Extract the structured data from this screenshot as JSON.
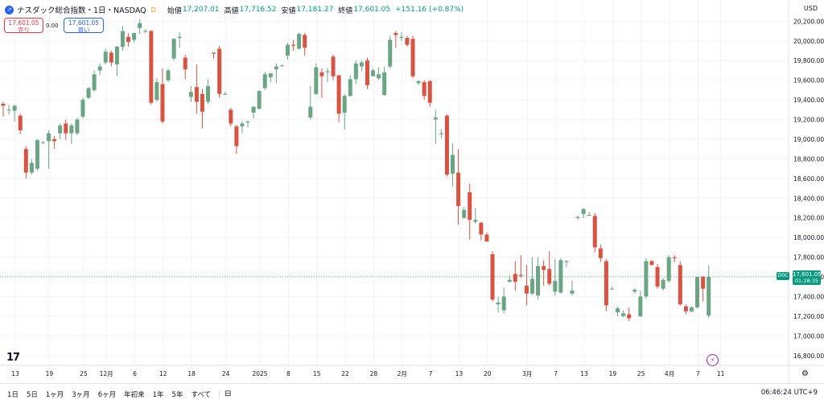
{
  "header": {
    "logo_glyph": "↗",
    "title": "ナスダック総合指数・1日・NASDAQ",
    "delay_badge": "D",
    "open_label": "始値",
    "open_value": "17,207.01",
    "high_label": "高値",
    "high_value": "17,716.52",
    "low_label": "安値",
    "low_value": "17,181.27",
    "close_label": "終値",
    "close_value": "17,601.05",
    "change": "+151.16 (+0.87%)"
  },
  "trade": {
    "sell_price": "17,601.05",
    "sell_label": "売り",
    "spread": "0.00",
    "buy_price": "17,601.05",
    "buy_label": "買い"
  },
  "currency": "USD",
  "price_tag": {
    "value": "17,601.05",
    "countdown": "01:28:35",
    "flag": "D0C"
  },
  "bottom": {
    "timeframes": [
      "1日",
      "5日",
      "1ヶ月",
      "3ヶ月",
      "6ヶ月",
      "年初来",
      "1年",
      "5年",
      "すべて"
    ],
    "clock": "06:46:24 UTC+9"
  },
  "colors": {
    "up": "#6ba583",
    "down": "#d75442",
    "grid": "#f0f3fa",
    "axis_text": "#131722"
  },
  "icons": [
    "tradingview-logo-icon",
    "lightning-icon",
    "settings-gear-icon",
    "calendar-range-icon"
  ],
  "chart_data": {
    "type": "candlestick",
    "ylim": [
      16700,
      20350
    ],
    "y_ticks": [
      16800,
      17000,
      17200,
      17400,
      17600,
      17800,
      18000,
      18200,
      18400,
      18600,
      18800,
      19000,
      19200,
      19400,
      19600,
      19800,
      20000,
      20200
    ],
    "y_tick_labels": [
      "16,800.00",
      "17,000.00",
      "17,200.00",
      "17,400.00",
      "17,600.00",
      "17,800.00",
      "18,000.00",
      "18,200.00",
      "18,400.00",
      "18,600.00",
      "18,800.00",
      "19,000.00",
      "19,200.00",
      "19,400.00",
      "19,600.00",
      "19,800.00",
      "20,000.00",
      "20,200.00"
    ],
    "x_labels": [
      "13",
      "19",
      "25",
      "12月",
      "6",
      "12",
      "18",
      "24",
      "2025",
      "8",
      "15",
      "22",
      "28",
      "2月",
      "7",
      "13",
      "20",
      "3月",
      "7",
      "13",
      "19",
      "25",
      "4月",
      "7",
      "11"
    ],
    "x_label_slots": [
      0,
      6,
      12,
      16,
      21,
      26,
      31,
      37,
      43,
      48,
      53,
      58,
      63,
      68,
      73,
      78,
      83,
      90,
      95,
      100,
      105,
      110,
      115,
      120,
      124
    ],
    "current_price": 17601.05,
    "candles": [
      [
        19360,
        19340,
        19380,
        19230
      ],
      [
        19300,
        19300,
        19350,
        19250
      ],
      [
        19290,
        19340,
        19350,
        19180
      ],
      [
        19240,
        19090,
        19260,
        19050
      ],
      [
        18900,
        18660,
        18930,
        18600
      ],
      [
        18660,
        18760,
        18800,
        18640
      ],
      [
        18700,
        18990,
        19000,
        18680
      ],
      [
        18970,
        18970,
        18980,
        18950
      ],
      [
        18980,
        19060,
        19090,
        18700
      ],
      [
        19000,
        18980,
        19030,
        18900
      ],
      [
        19060,
        19140,
        19160,
        19000
      ],
      [
        19160,
        19060,
        19200,
        18990
      ],
      [
        19060,
        19140,
        19160,
        18950
      ],
      [
        19060,
        19200,
        19220,
        19040
      ],
      [
        19230,
        19400,
        19420,
        19210
      ],
      [
        19420,
        19520,
        19530,
        19410
      ],
      [
        19500,
        19660,
        19700,
        19480
      ],
      [
        19700,
        19740,
        19770,
        19650
      ],
      [
        19780,
        19890,
        19920,
        19760
      ],
      [
        19880,
        19780,
        19900,
        19740
      ],
      [
        19760,
        19940,
        19950,
        19640
      ],
      [
        19940,
        20100,
        20150,
        19900
      ],
      [
        20040,
        19990,
        20080,
        19940
      ],
      [
        20010,
        20080,
        20080,
        19980
      ],
      [
        20130,
        20180,
        20220,
        20070
      ],
      [
        20100,
        20100,
        20120,
        20080
      ],
      [
        20100,
        19370,
        20110,
        19350
      ],
      [
        19400,
        19580,
        19620,
        19380
      ],
      [
        19560,
        19180,
        19720,
        19160
      ],
      [
        19600,
        19700,
        19720,
        19580
      ],
      [
        19820,
        20020,
        20030,
        19800
      ],
      [
        20030,
        20040,
        20090,
        19930
      ],
      [
        19830,
        19710,
        19860,
        19610
      ],
      [
        19430,
        19480,
        19540,
        19380
      ],
      [
        19530,
        19380,
        19760,
        19260
      ],
      [
        19460,
        19280,
        19510,
        19110
      ],
      [
        19380,
        19540,
        19610,
        19360
      ],
      [
        19880,
        19870,
        19880,
        19820
      ],
      [
        19920,
        19460,
        19950,
        19420
      ],
      [
        19460,
        19460,
        19480,
        19450
      ],
      [
        19300,
        19160,
        19320,
        19130
      ],
      [
        19130,
        18930,
        19150,
        18850
      ],
      [
        19130,
        19160,
        19190,
        19060
      ],
      [
        19180,
        19180,
        19190,
        19120
      ],
      [
        19270,
        19330,
        19340,
        19210
      ],
      [
        19310,
        19490,
        19500,
        19300
      ],
      [
        19520,
        19660,
        19680,
        19500
      ],
      [
        19630,
        19670,
        19670,
        19580
      ],
      [
        19710,
        19740,
        19770,
        19570
      ],
      [
        19750,
        19750,
        19760,
        19740
      ],
      [
        19850,
        19960,
        19980,
        19810
      ],
      [
        19960,
        19950,
        20010,
        19900
      ],
      [
        19920,
        20070,
        20080,
        19910
      ],
      [
        20060,
        19930,
        20080,
        19850
      ],
      [
        19220,
        19330,
        19540,
        19200
      ],
      [
        19460,
        19730,
        19770,
        19450
      ],
      [
        19680,
        19640,
        19720,
        19420
      ],
      [
        19680,
        19690,
        19720,
        19580
      ],
      [
        19840,
        19640,
        19860,
        19600
      ],
      [
        19650,
        19260,
        19650,
        19170
      ],
      [
        19270,
        19440,
        19460,
        19100
      ],
      [
        19440,
        19610,
        19650,
        19430
      ],
      [
        19610,
        19770,
        19800,
        19560
      ],
      [
        19740,
        19780,
        19800,
        19690
      ],
      [
        19800,
        19550,
        19830,
        19510
      ],
      [
        19640,
        19700,
        19720,
        19650
      ],
      [
        19620,
        19660,
        19730,
        19600
      ],
      [
        19450,
        19680,
        19740,
        19440
      ],
      [
        19740,
        20010,
        20050,
        19720
      ],
      [
        20080,
        20060,
        20100,
        19930
      ],
      [
        20030,
        20040,
        20090,
        20000
      ],
      [
        20030,
        19960,
        20050,
        19940
      ],
      [
        20020,
        19640,
        20050,
        19620
      ],
      [
        19570,
        19590,
        19600,
        19550
      ],
      [
        19580,
        19440,
        19600,
        19400
      ],
      [
        19590,
        19370,
        19600,
        19330
      ],
      [
        19200,
        19220,
        19300,
        18950
      ],
      [
        19050,
        19060,
        19100,
        19010
      ],
      [
        19240,
        18640,
        19250,
        18620
      ],
      [
        18650,
        18840,
        18960,
        18520
      ],
      [
        18660,
        18320,
        18900,
        18130
      ],
      [
        18200,
        18280,
        18310,
        18190
      ],
      [
        18460,
        18180,
        18550,
        17980
      ],
      [
        18160,
        18180,
        18300,
        18140
      ],
      [
        18150,
        18030,
        18160,
        17970
      ],
      [
        18030,
        17960,
        18050,
        17960
      ],
      [
        17830,
        17370,
        17860,
        17350
      ],
      [
        17320,
        17340,
        17400,
        17240
      ],
      [
        17260,
        17400,
        17490,
        17230
      ],
      [
        17550,
        17570,
        17620,
        17540
      ],
      [
        17630,
        17550,
        17760,
        17460
      ],
      [
        17620,
        17610,
        17820,
        17590
      ],
      [
        17510,
        17430,
        17720,
        17310
      ],
      [
        17430,
        17580,
        17800,
        17420
      ],
      [
        17410,
        17710,
        17800,
        17370
      ],
      [
        17710,
        17670,
        17770,
        17510
      ],
      [
        17680,
        17530,
        17860,
        17510
      ],
      [
        17450,
        17560,
        17780,
        17410
      ],
      [
        17440,
        17770,
        17790,
        17430
      ],
      [
        17750,
        17760,
        17770,
        17700
      ],
      [
        17430,
        17460,
        17560,
        17410
      ],
      [
        18200,
        18210,
        18220,
        18180
      ],
      [
        18240,
        18290,
        18300,
        18200
      ],
      [
        18230,
        18230,
        18260,
        18220
      ],
      [
        18220,
        17900,
        18250,
        17850
      ],
      [
        17890,
        17790,
        17930,
        17750
      ],
      [
        17760,
        17310,
        17780,
        17250
      ],
      [
        17480,
        17480,
        17500,
        17470
      ],
      [
        17240,
        17280,
        17300,
        17200
      ],
      [
        17200,
        17230,
        17260,
        17190
      ],
      [
        17220,
        17180,
        17290,
        17150
      ],
      [
        17450,
        17470,
        17480,
        17430
      ],
      [
        17200,
        17400,
        17460,
        17190
      ],
      [
        17400,
        17760,
        17790,
        17380
      ],
      [
        17760,
        17720,
        17770,
        17720
      ],
      [
        17700,
        17500,
        17730,
        17480
      ],
      [
        17480,
        17570,
        17590,
        17460
      ],
      [
        17560,
        17800,
        17820,
        17540
      ],
      [
        17800,
        17790,
        17820,
        17750
      ],
      [
        17720,
        17320,
        17760,
        17310
      ],
      [
        17300,
        17250,
        17320,
        17220
      ],
      [
        17250,
        17290,
        17300,
        17240
      ],
      [
        17290,
        17600,
        17600,
        17280
      ],
      [
        17600,
        17480,
        17610,
        17350
      ],
      [
        17207,
        17601,
        17716,
        17181
      ]
    ]
  }
}
